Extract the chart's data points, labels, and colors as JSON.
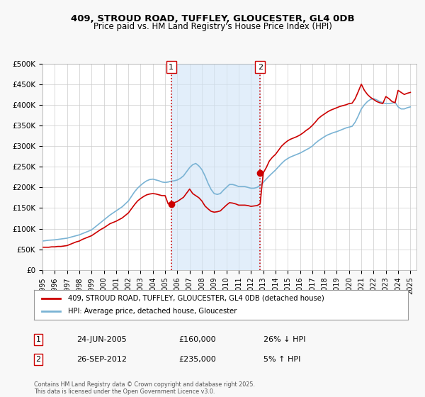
{
  "title_line1": "409, STROUD ROAD, TUFFLEY, GLOUCESTER, GL4 0DB",
  "title_line2": "Price paid vs. HM Land Registry's House Price Index (HPI)",
  "xlabel": "",
  "ylabel": "",
  "ylim": [
    0,
    500000
  ],
  "yticks": [
    0,
    50000,
    100000,
    150000,
    200000,
    250000,
    300000,
    350000,
    400000,
    450000,
    500000
  ],
  "ytick_labels": [
    "£0",
    "£50K",
    "£100K",
    "£150K",
    "£200K",
    "£250K",
    "£300K",
    "£350K",
    "£400K",
    "£450K",
    "£500K"
  ],
  "sale_dates": [
    "2005-06-24",
    "2012-09-26"
  ],
  "sale_prices": [
    160000,
    235000
  ],
  "sale_labels": [
    "1",
    "2"
  ],
  "sale_date_strs": [
    "24-JUN-2005",
    "26-SEP-2012"
  ],
  "sale_price_strs": [
    "£160,000",
    "£235,000"
  ],
  "sale_hpi_strs": [
    "26% ↓ HPI",
    "5% ↑ HPI"
  ],
  "vline_color": "#cc0000",
  "vline_style": ":",
  "shade_color": "#d0e4f7",
  "legend_label_red": "409, STROUD ROAD, TUFFLEY, GLOUCESTER, GL4 0DB (detached house)",
  "legend_label_blue": "HPI: Average price, detached house, Gloucester",
  "footnote": "Contains HM Land Registry data © Crown copyright and database right 2025.\nThis data is licensed under the Open Government Licence v3.0.",
  "bg_color": "#f8f8f8",
  "plot_bg_color": "#ffffff",
  "grid_color": "#cccccc",
  "red_line_color": "#cc0000",
  "blue_line_color": "#7ab3d4",
  "hpi_x": [
    1995.0,
    1995.25,
    1995.5,
    1995.75,
    1996.0,
    1996.25,
    1996.5,
    1996.75,
    1997.0,
    1997.25,
    1997.5,
    1997.75,
    1998.0,
    1998.25,
    1998.5,
    1998.75,
    1999.0,
    1999.25,
    1999.5,
    1999.75,
    2000.0,
    2000.25,
    2000.5,
    2000.75,
    2001.0,
    2001.25,
    2001.5,
    2001.75,
    2002.0,
    2002.25,
    2002.5,
    2002.75,
    2003.0,
    2003.25,
    2003.5,
    2003.75,
    2004.0,
    2004.25,
    2004.5,
    2004.75,
    2005.0,
    2005.25,
    2005.5,
    2005.75,
    2006.0,
    2006.25,
    2006.5,
    2006.75,
    2007.0,
    2007.25,
    2007.5,
    2007.75,
    2008.0,
    2008.25,
    2008.5,
    2008.75,
    2009.0,
    2009.25,
    2009.5,
    2009.75,
    2010.0,
    2010.25,
    2010.5,
    2010.75,
    2011.0,
    2011.25,
    2011.5,
    2011.75,
    2012.0,
    2012.25,
    2012.5,
    2012.75,
    2013.0,
    2013.25,
    2013.5,
    2013.75,
    2014.0,
    2014.25,
    2014.5,
    2014.75,
    2015.0,
    2015.25,
    2015.5,
    2015.75,
    2016.0,
    2016.25,
    2016.5,
    2016.75,
    2017.0,
    2017.25,
    2017.5,
    2017.75,
    2018.0,
    2018.25,
    2018.5,
    2018.75,
    2019.0,
    2019.25,
    2019.5,
    2019.75,
    2020.0,
    2020.25,
    2020.5,
    2020.75,
    2021.0,
    2021.25,
    2021.5,
    2021.75,
    2022.0,
    2022.25,
    2022.5,
    2022.75,
    2023.0,
    2023.25,
    2023.5,
    2023.75,
    2024.0,
    2024.25,
    2024.5,
    2024.75,
    2025.0
  ],
  "hpi_y": [
    70000,
    71000,
    72000,
    72500,
    73000,
    74000,
    75000,
    76000,
    77000,
    79000,
    81000,
    83000,
    85000,
    88000,
    91000,
    94000,
    97000,
    103000,
    109000,
    115000,
    121000,
    127000,
    133000,
    138000,
    143000,
    148000,
    153000,
    160000,
    167000,
    178000,
    189000,
    198000,
    205000,
    211000,
    216000,
    219000,
    220000,
    218000,
    216000,
    213000,
    212000,
    213000,
    215000,
    216000,
    218000,
    222000,
    228000,
    238000,
    248000,
    255000,
    258000,
    252000,
    243000,
    228000,
    210000,
    195000,
    185000,
    183000,
    185000,
    193000,
    200000,
    207000,
    207000,
    205000,
    202000,
    202000,
    202000,
    200000,
    198000,
    198000,
    200000,
    205000,
    212000,
    220000,
    228000,
    235000,
    242000,
    250000,
    258000,
    265000,
    270000,
    274000,
    277000,
    280000,
    283000,
    287000,
    291000,
    295000,
    300000,
    307000,
    313000,
    318000,
    323000,
    327000,
    330000,
    333000,
    335000,
    338000,
    341000,
    344000,
    346000,
    348000,
    358000,
    373000,
    390000,
    400000,
    408000,
    413000,
    415000,
    412000,
    408000,
    405000,
    403000,
    403000,
    404000,
    406000,
    395000,
    390000,
    390000,
    393000,
    395000
  ],
  "red_x": [
    1995.0,
    1995.25,
    1995.5,
    1995.75,
    1996.0,
    1996.25,
    1996.5,
    1996.75,
    1997.0,
    1997.25,
    1997.5,
    1997.75,
    1998.0,
    1998.25,
    1998.5,
    1998.75,
    1999.0,
    1999.25,
    1999.5,
    1999.75,
    2000.0,
    2000.25,
    2000.5,
    2000.75,
    2001.0,
    2001.25,
    2001.5,
    2001.75,
    2002.0,
    2002.25,
    2002.5,
    2002.75,
    2003.0,
    2003.25,
    2003.5,
    2003.75,
    2004.0,
    2004.25,
    2004.5,
    2004.75,
    2005.0,
    2005.25,
    2005.5,
    2005.75,
    2006.0,
    2006.25,
    2006.5,
    2006.75,
    2007.0,
    2007.25,
    2007.5,
    2007.75,
    2008.0,
    2008.25,
    2008.5,
    2008.75,
    2009.0,
    2009.25,
    2009.5,
    2009.75,
    2010.0,
    2010.25,
    2010.5,
    2010.75,
    2011.0,
    2011.25,
    2011.5,
    2011.75,
    2012.0,
    2012.25,
    2012.5,
    2012.75,
    2013.0,
    2013.25,
    2013.5,
    2013.75,
    2014.0,
    2014.25,
    2014.5,
    2014.75,
    2015.0,
    2015.25,
    2015.5,
    2015.75,
    2016.0,
    2016.25,
    2016.5,
    2016.75,
    2017.0,
    2017.25,
    2017.5,
    2017.75,
    2018.0,
    2018.25,
    2018.5,
    2018.75,
    2019.0,
    2019.25,
    2019.5,
    2019.75,
    2020.0,
    2020.25,
    2020.5,
    2020.75,
    2021.0,
    2021.25,
    2021.5,
    2021.75,
    2022.0,
    2022.25,
    2022.5,
    2022.75,
    2023.0,
    2023.25,
    2023.5,
    2023.75,
    2024.0,
    2024.25,
    2024.5,
    2024.75,
    2025.0
  ],
  "red_y": [
    55000,
    55000,
    55000,
    56000,
    56000,
    57000,
    57000,
    58000,
    59000,
    62000,
    65000,
    68000,
    70000,
    74000,
    77000,
    80000,
    83000,
    88000,
    93000,
    98000,
    102000,
    107000,
    112000,
    115000,
    118000,
    122000,
    126000,
    132000,
    138000,
    148000,
    158000,
    167000,
    173000,
    178000,
    182000,
    184000,
    185000,
    184000,
    182000,
    180000,
    180000,
    160000,
    161000,
    163000,
    166000,
    171000,
    176000,
    186000,
    196000,
    185000,
    180000,
    175000,
    167000,
    155000,
    148000,
    142000,
    140000,
    141000,
    143000,
    150000,
    157000,
    163000,
    162000,
    160000,
    157000,
    157000,
    157000,
    156000,
    154000,
    155000,
    156000,
    160000,
    235000,
    248000,
    264000,
    273000,
    280000,
    290000,
    300000,
    307000,
    313000,
    317000,
    320000,
    323000,
    327000,
    332000,
    338000,
    343000,
    350000,
    358000,
    367000,
    373000,
    378000,
    383000,
    387000,
    390000,
    393000,
    396000,
    398000,
    400000,
    403000,
    404000,
    415000,
    432000,
    450000,
    435000,
    425000,
    418000,
    413000,
    408000,
    405000,
    403000,
    420000,
    415000,
    408000,
    405000,
    435000,
    430000,
    425000,
    428000,
    430000
  ],
  "xtick_years": [
    1995,
    1996,
    1997,
    1998,
    1999,
    2000,
    2001,
    2002,
    2003,
    2004,
    2005,
    2006,
    2007,
    2008,
    2009,
    2010,
    2011,
    2012,
    2013,
    2014,
    2015,
    2016,
    2017,
    2018,
    2019,
    2020,
    2021,
    2022,
    2023,
    2024,
    2025
  ]
}
